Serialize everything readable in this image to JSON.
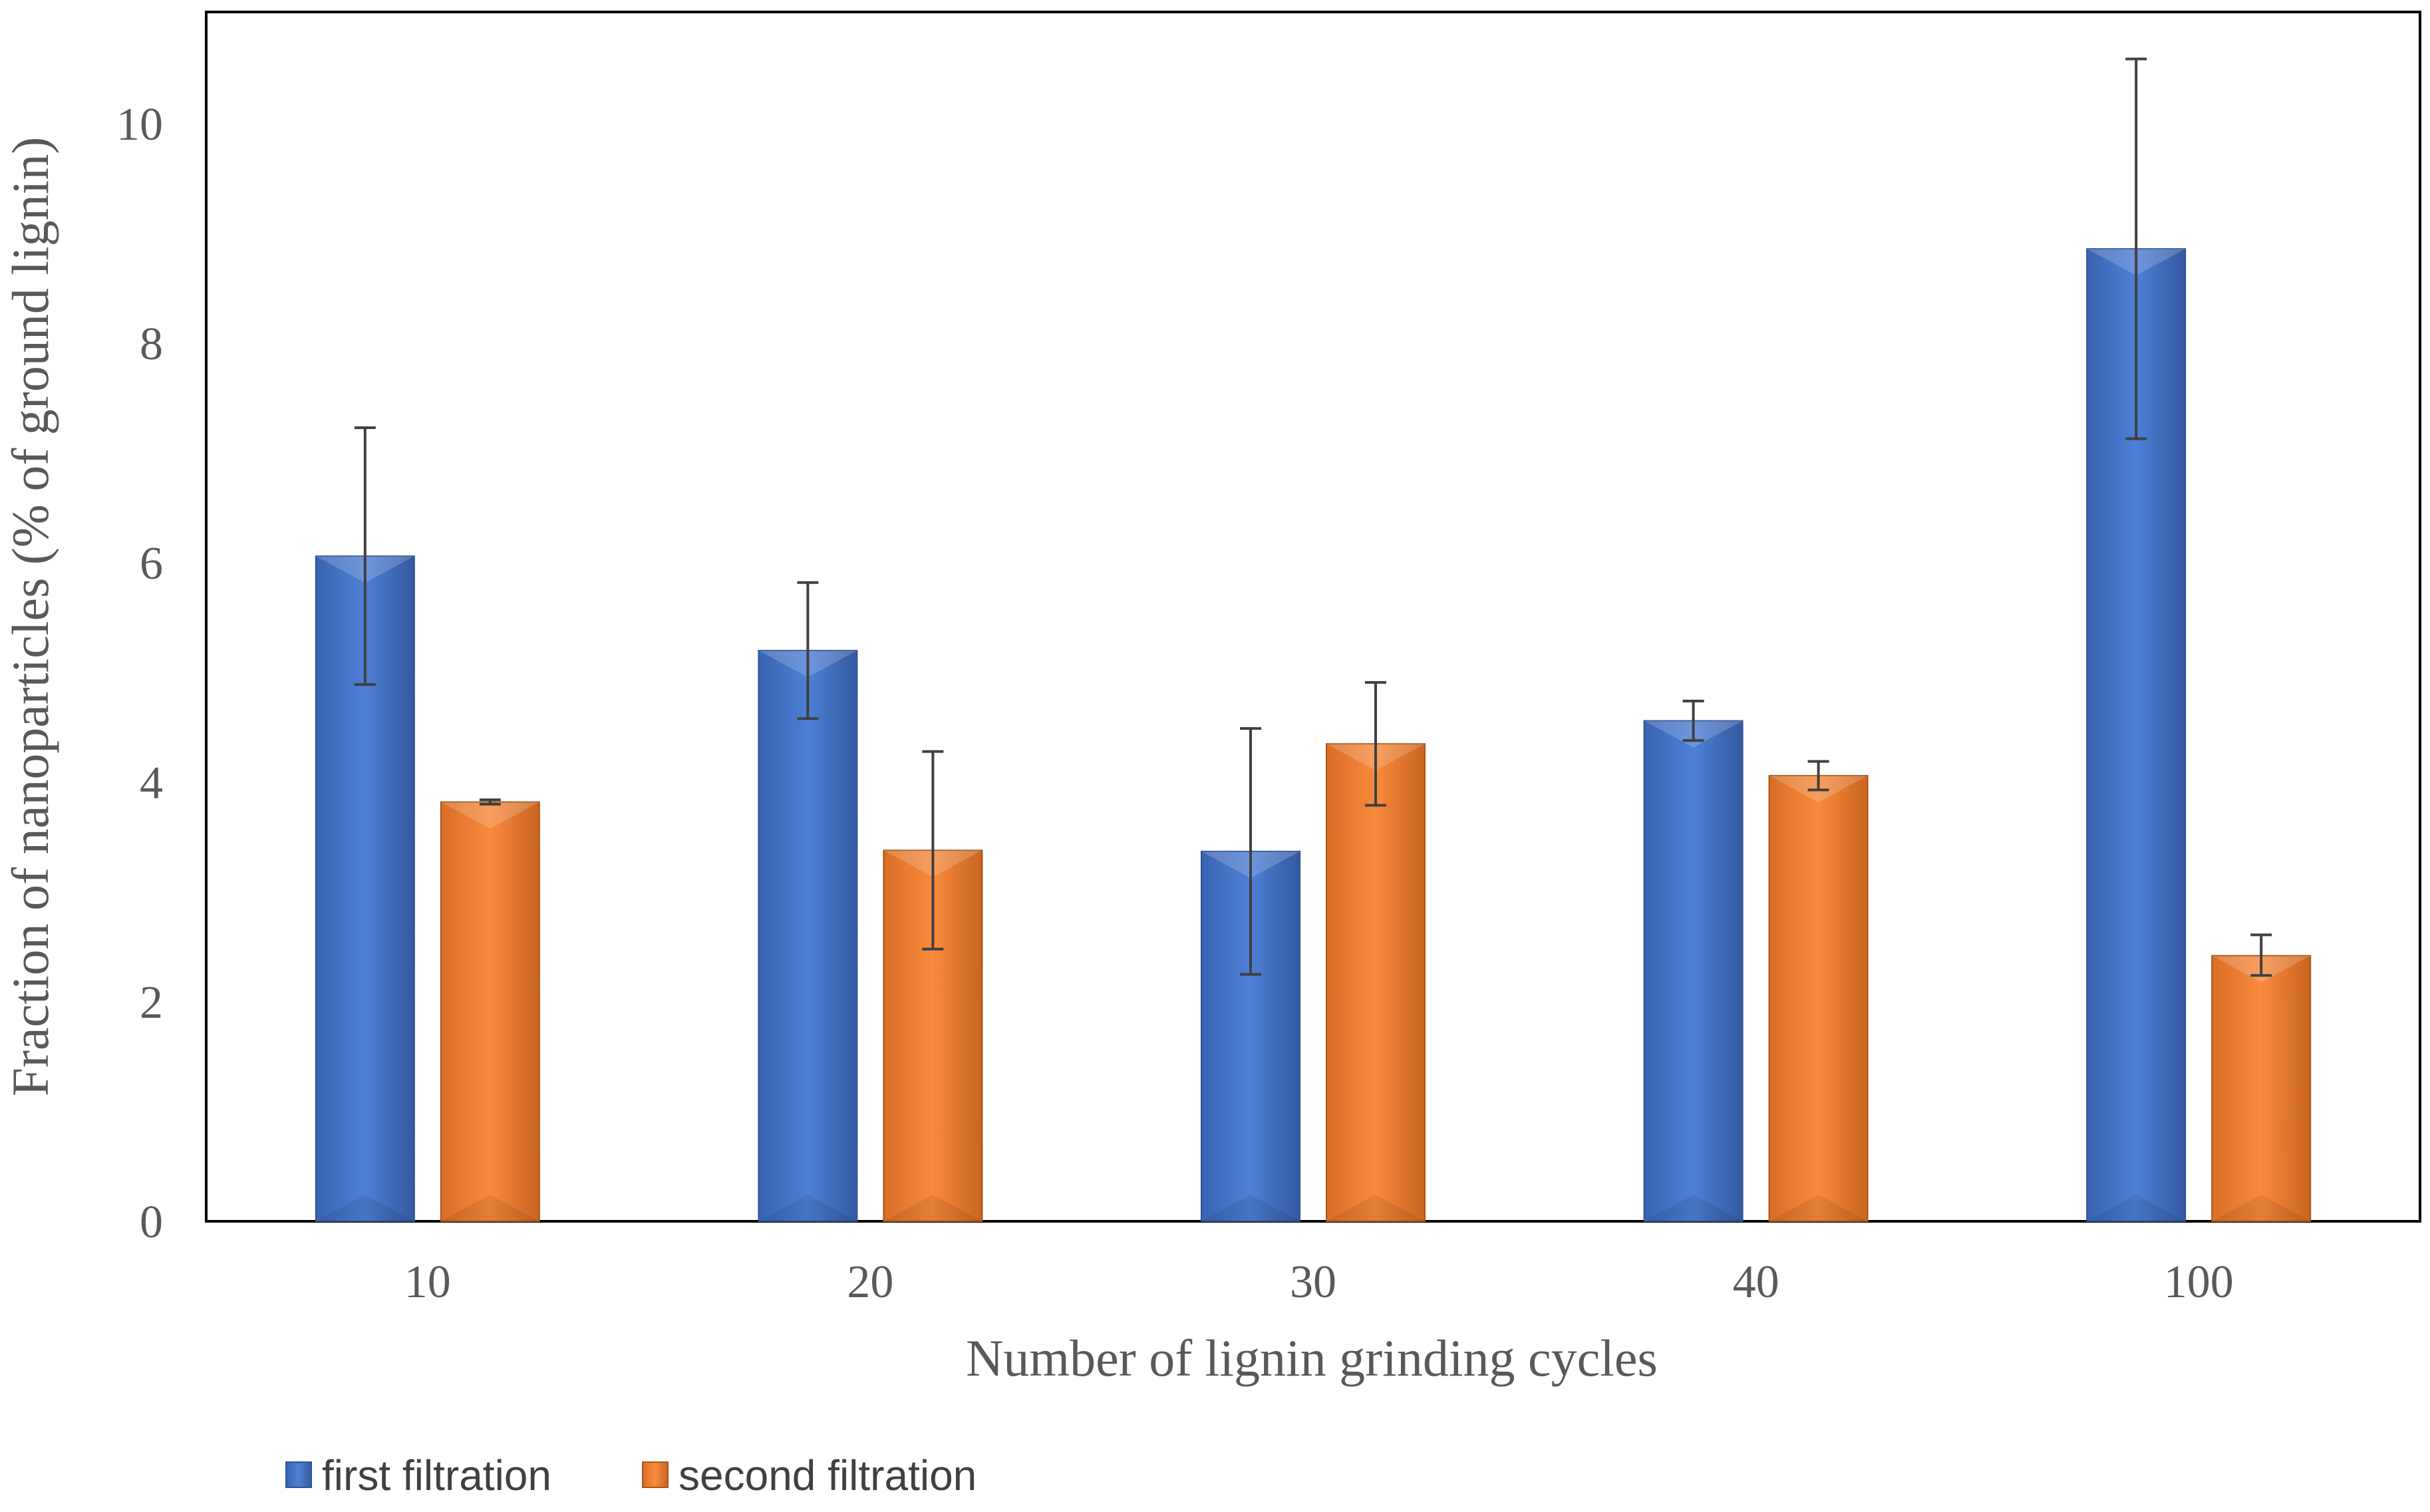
{
  "chart_data": {
    "type": "bar",
    "title": "",
    "xlabel": "Number of lignin grinding cycles",
    "ylabel": "Fraction of nanoparticles (% of ground lignin)",
    "categories": [
      "10",
      "20",
      "30",
      "40",
      "100"
    ],
    "ylim": [
      0,
      11
    ],
    "yticks": [
      0,
      2,
      4,
      6,
      8,
      10
    ],
    "series": [
      {
        "name": "first filtration",
        "color": "#4472C4",
        "values": [
          6.06,
          5.2,
          3.37,
          4.56,
          8.86
        ],
        "err_low": [
          4.89,
          4.58,
          2.25,
          4.38,
          7.13
        ],
        "err_high": [
          7.23,
          5.82,
          4.49,
          4.74,
          10.59
        ]
      },
      {
        "name": "second filtration",
        "color": "#ED7D31",
        "values": [
          3.82,
          3.38,
          4.35,
          4.06,
          2.42
        ],
        "err_low": [
          3.8,
          2.48,
          3.79,
          3.93,
          2.24
        ],
        "err_high": [
          3.84,
          4.28,
          4.91,
          4.19,
          2.61
        ]
      }
    ],
    "legend_position": "bottom-left",
    "grid": false
  }
}
